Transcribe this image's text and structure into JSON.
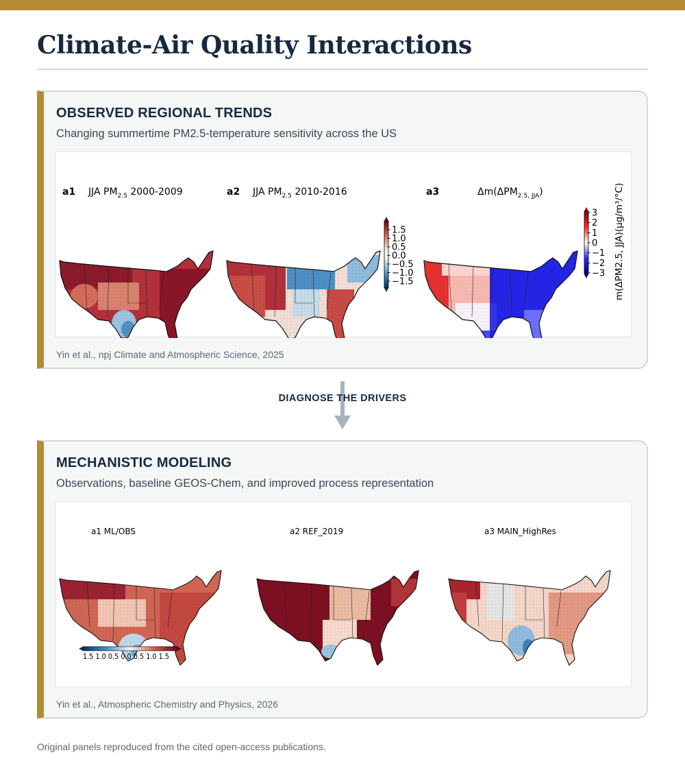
{
  "page": {
    "title": "Climate-Air Quality Interactions",
    "footnote": "Original panels reproduced from the cited open-access publications.",
    "accent_color": "#b48c36",
    "title_color": "#17293f"
  },
  "section_observed": {
    "heading": "OBSERVED REGIONAL TRENDS",
    "subtitle": "Changing summertime PM2.5-temperature sensitivity across the US",
    "source": "Yin et al., npj Climate and Atmospheric Science, 2025",
    "panels": [
      {
        "id": "a1",
        "title": "JJA PM",
        "sub": "2.5",
        "suffix": " 2000-2009"
      },
      {
        "id": "a2",
        "title": "JJA PM",
        "sub": "2.5",
        "suffix": " 2010-2016"
      },
      {
        "id": "a3",
        "title": "Δm(ΔPM",
        "sub": "2.5, JJA",
        "suffix": ")"
      }
    ],
    "colorbar_left_ticks": [
      "1.5",
      "1.0",
      "0.5",
      "0.0",
      "−0.5",
      "−1.0",
      "−1.5"
    ],
    "colorbar_right_ticks": [
      "3",
      "2",
      "1",
      "0",
      "−1",
      "−2",
      "−3"
    ],
    "colorbar_right_label": "m(ΔPM2.5, JJA)(µg/m³/°C)"
  },
  "connector": {
    "label": "DIAGNOSE THE DRIVERS"
  },
  "section_modeling": {
    "heading": "MECHANISTIC MODELING",
    "subtitle": "Observations, baseline GEOS-Chem, and improved process representation",
    "source": "Yin et al., Atmospheric Chemistry and Physics, 2026",
    "panels": [
      {
        "id": "a1",
        "title": "a1 ML/OBS"
      },
      {
        "id": "a2",
        "title": "a2 REF_2019"
      },
      {
        "id": "a3",
        "title": "a3 MAIN_HighRes"
      }
    ],
    "colorbar_ticks": "1.5 1.0 0.5 0.0 0.5 1.0 1.5"
  }
}
